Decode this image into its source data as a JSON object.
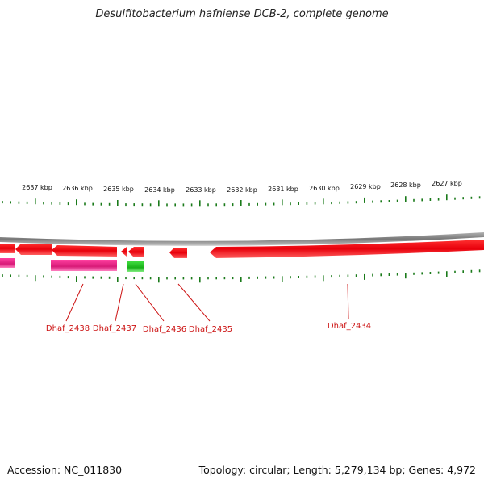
{
  "title": "Desulfitobacterium hafniense DCB-2, complete genome",
  "footer": {
    "accession": "Accession: NC_011830",
    "summary": "Topology: circular; Length: 5,279,134 bp; Genes: 4,972"
  },
  "ruler": {
    "labels": [
      "2637 kbp",
      "2636 kbp",
      "2635 kbp",
      "2634 kbp",
      "2633 kbp",
      "2632 kbp",
      "2631 kbp",
      "2630 kbp",
      "2629 kbp",
      "2628 kbp",
      "2627 kbp"
    ],
    "color": "#1a7a1a"
  },
  "genes": [
    {
      "label": "Dhaf_2438"
    },
    {
      "label": "Dhaf_2437"
    },
    {
      "label": "Dhaf_2436"
    },
    {
      "label": "Dhaf_2435"
    },
    {
      "label": "Dhaf_2434"
    }
  ],
  "colors": {
    "cds": "#e8000b",
    "cds_shade": "#ff7070",
    "rrna": "#e0207f",
    "trna": "#22bb22",
    "backbone": "#888888",
    "label": "#cc1111"
  }
}
